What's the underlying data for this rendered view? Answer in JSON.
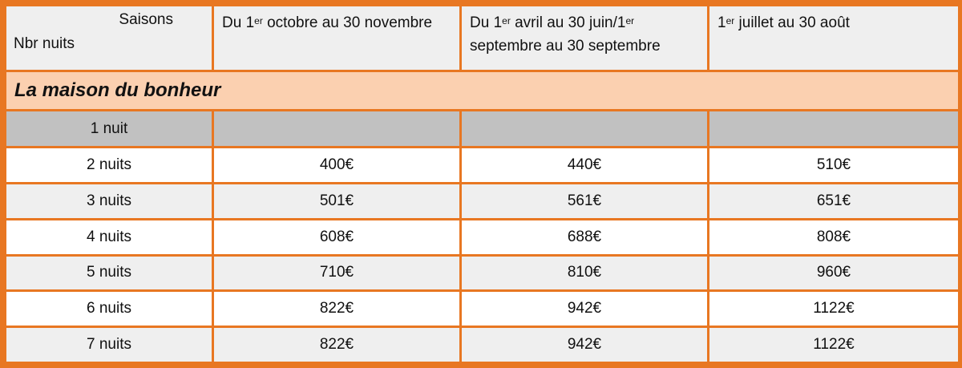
{
  "header": {
    "corner_top": "Saisons",
    "corner_bottom": "Nbr nuits",
    "col1_pre": "Du 1",
    "col1_sup": "er",
    "col1_post": " octobre au 30 novembre",
    "col2_pre": "Du 1",
    "col2_sup1": "er",
    "col2_mid": " avril au 30 juin/1",
    "col2_sup2": "er",
    "col2_post": " septembre au 30 septembre",
    "col3_pre": "1",
    "col3_sup": "er",
    "col3_post": " juillet au 30 août"
  },
  "section_title": "La maison du bonheur",
  "rows": [
    {
      "nights": "1 nuit",
      "c1": "",
      "c2": "",
      "c3": ""
    },
    {
      "nights": "2 nuits",
      "c1": "400€",
      "c2": "440€",
      "c3": "510€"
    },
    {
      "nights": "3 nuits",
      "c1": "501€",
      "c2": "561€",
      "c3": "651€"
    },
    {
      "nights": "4 nuits",
      "c1": "608€",
      "c2": "688€",
      "c3": "808€"
    },
    {
      "nights": "5 nuits",
      "c1": "710€",
      "c2": "810€",
      "c3": "960€"
    },
    {
      "nights": "6 nuits",
      "c1": "822€",
      "c2": "942€",
      "c3": "1122€"
    },
    {
      "nights": "7 nuits",
      "c1": "822€",
      "c2": "942€",
      "c3": "1122€"
    }
  ],
  "colors": {
    "border": "#e87722",
    "section_bg": "#fbd0b0",
    "header_bg": "#efefef",
    "gray_row": "#c1c1c1"
  }
}
